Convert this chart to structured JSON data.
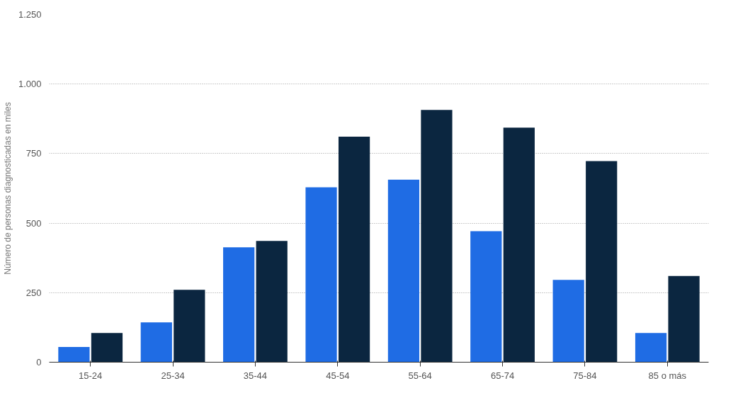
{
  "chart_data": {
    "type": "bar",
    "ylabel": "Número de personas diagnosticadas en miles",
    "categories": [
      "15-24",
      "25-34",
      "35-44",
      "45-54",
      "55-64",
      "65-74",
      "75-84",
      "85 o más"
    ],
    "series": [
      {
        "color": "#1f6ce4",
        "values": [
          55,
          143,
          413,
          629,
          656,
          471,
          296,
          105
        ]
      },
      {
        "color": "#0b2640",
        "values": [
          105,
          260,
          436,
          811,
          907,
          843,
          723,
          310
        ]
      }
    ],
    "ylim": [
      0,
      1250
    ],
    "yticks": [
      0,
      250,
      500,
      750,
      {
        "value": 1000,
        "label": "1.000"
      },
      {
        "value": 1250,
        "label": "1.250"
      }
    ],
    "grid": "y"
  }
}
